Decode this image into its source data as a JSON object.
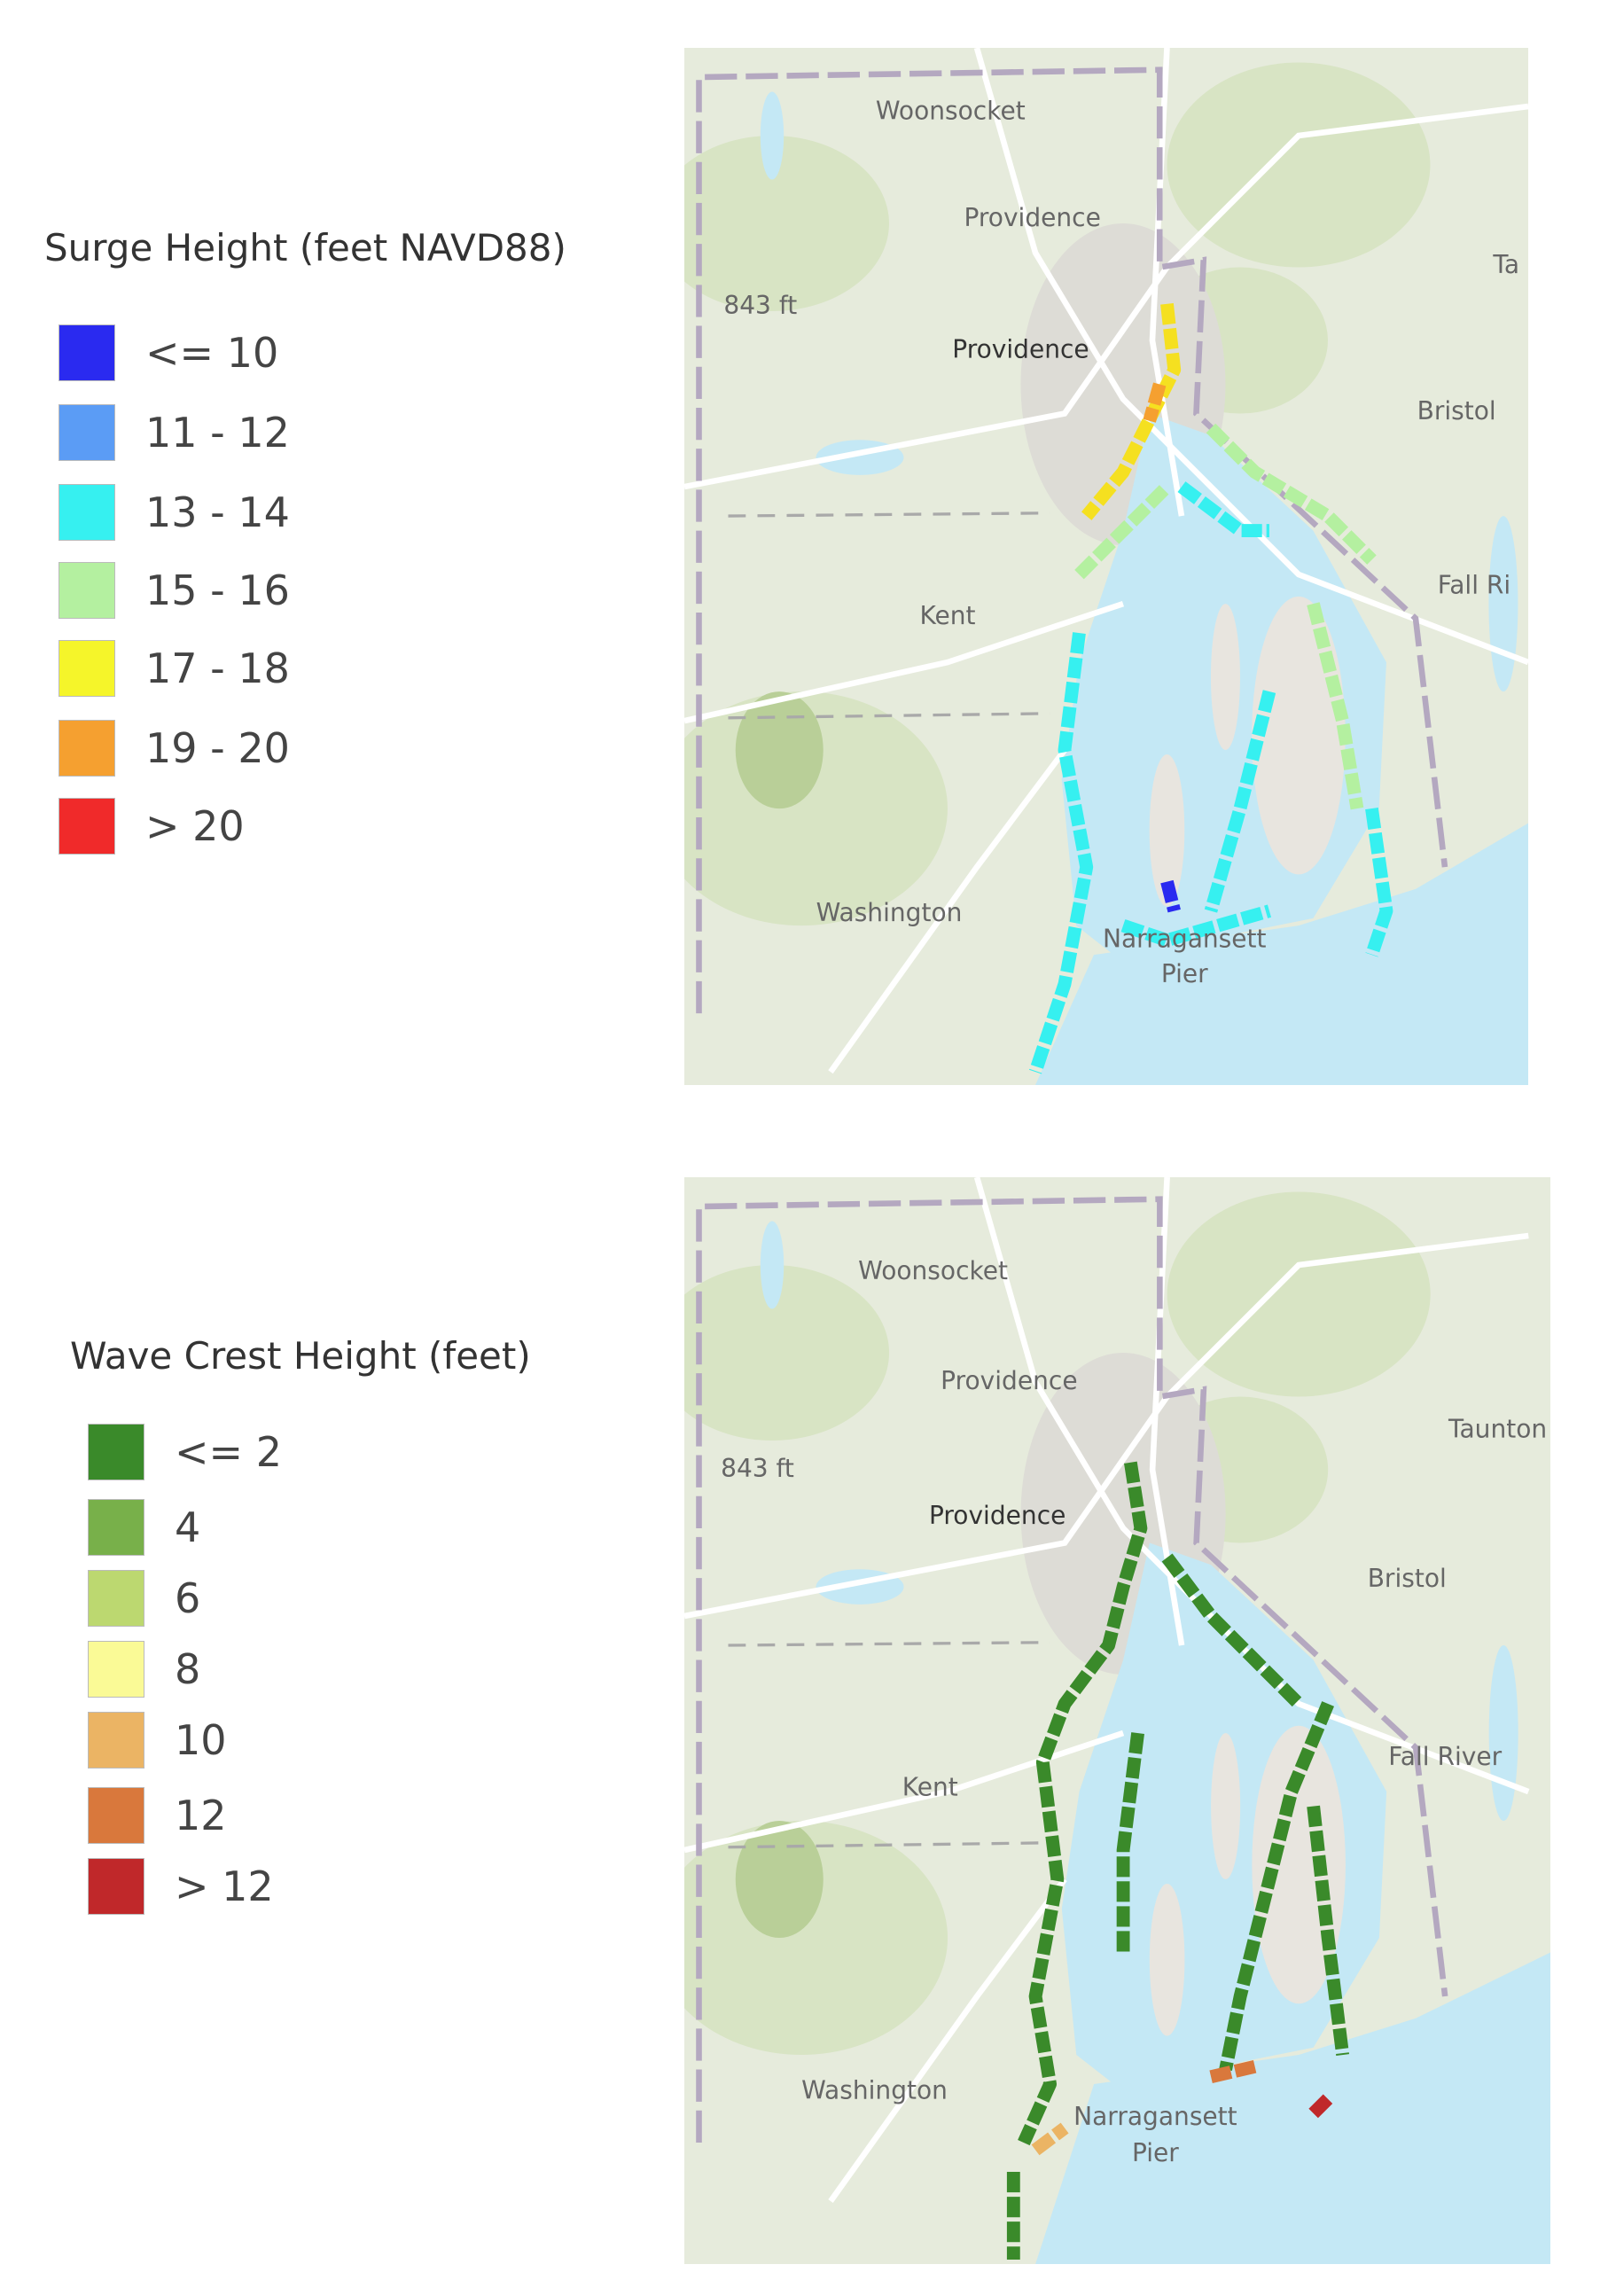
{
  "panels": [
    {
      "legend": {
        "title": "Surge Height (feet NAVD88)",
        "items": [
          {
            "label": "<= 10",
            "color": "#2a2af0"
          },
          {
            "label": "11 - 12",
            "color": "#5b9cf5"
          },
          {
            "label": "13 - 14",
            "color": "#36f0f0"
          },
          {
            "label": "15 - 16",
            "color": "#b4f0a0"
          },
          {
            "label": "17 - 18",
            "color": "#f5f52a"
          },
          {
            "label": "19 - 20",
            "color": "#f5a030"
          },
          {
            "label": "> 20",
            "color": "#f02a2a"
          }
        ]
      },
      "map": {
        "labels": [
          "Woonsocket",
          "Providence",
          "843 ft",
          "Providence",
          "Ta",
          "Bristol",
          "Fall Ri",
          "Kent",
          "Washington",
          "Narragansett",
          "Pier"
        ]
      }
    },
    {
      "legend": {
        "title": "Wave Crest Height (feet)",
        "items": [
          {
            "label": "<= 2",
            "color": "#3a8a2a"
          },
          {
            "label": "4",
            "color": "#78b04a"
          },
          {
            "label": "6",
            "color": "#bcd870"
          },
          {
            "label": "8",
            "color": "#fafa96"
          },
          {
            "label": "10",
            "color": "#ebb464"
          },
          {
            "label": "12",
            "color": "#d9783c"
          },
          {
            "label": "> 12",
            "color": "#c0282a"
          }
        ]
      },
      "map": {
        "labels": [
          "Woonsocket",
          "Providence",
          "843 ft",
          "Providence",
          "Taunton",
          "Bristol",
          "Fall River",
          "Kent",
          "Washington",
          "Narragansett",
          "Pier"
        ]
      }
    }
  ]
}
